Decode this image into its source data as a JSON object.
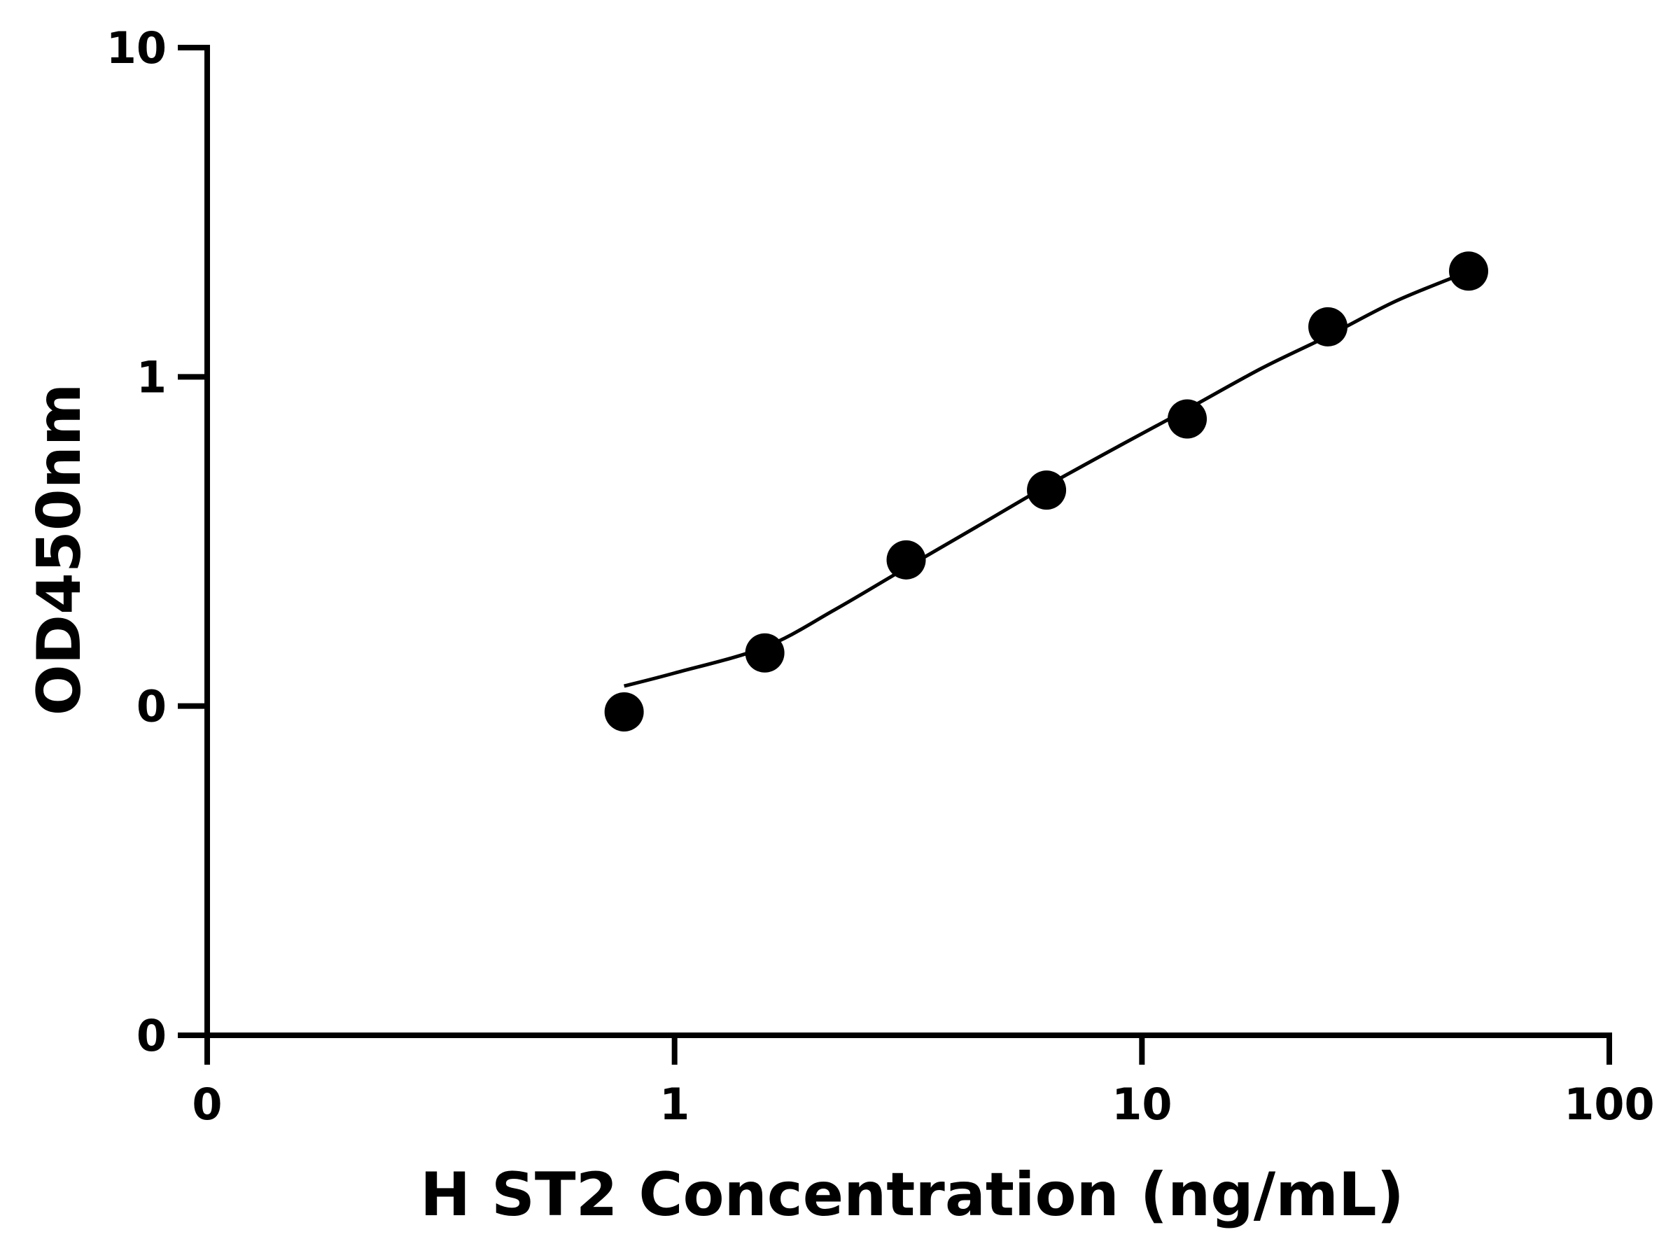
{
  "chart_data": {
    "type": "scatter",
    "title": "",
    "xlabel": "H ST2 Concentration (ng/mL)",
    "ylabel": "OD450nm",
    "x_scale": "log",
    "y_scale": "log",
    "xlim": [
      0.1,
      100
    ],
    "ylim": [
      0.01,
      10
    ],
    "x_ticks": [
      {
        "value": 0.1,
        "label": "0"
      },
      {
        "value": 1,
        "label": "1"
      },
      {
        "value": 10,
        "label": "10"
      },
      {
        "value": 100,
        "label": "100"
      }
    ],
    "y_ticks": [
      {
        "value": 0.01,
        "label": "0"
      },
      {
        "value": 0.1,
        "label": "0"
      },
      {
        "value": 1,
        "label": "1"
      },
      {
        "value": 10,
        "label": "10"
      }
    ],
    "grid": false,
    "legend": "none",
    "series": [
      {
        "style": "markers",
        "color": "#000000",
        "x": [
          0.78,
          1.56,
          3.13,
          6.25,
          12.5,
          25,
          50
        ],
        "y": [
          0.096,
          0.145,
          0.278,
          0.453,
          0.745,
          1.419,
          2.095
        ]
      },
      {
        "style": "fit-line",
        "color": "#000000",
        "x": [
          0.78,
          1.0,
          1.56,
          2.2,
          3.13,
          4.5,
          6.25,
          9.0,
          12.5,
          18.0,
          25,
          35,
          50
        ],
        "y": [
          0.115,
          0.126,
          0.151,
          0.196,
          0.263,
          0.355,
          0.466,
          0.62,
          0.797,
          1.06,
          1.33,
          1.7,
          2.09
        ]
      }
    ]
  }
}
